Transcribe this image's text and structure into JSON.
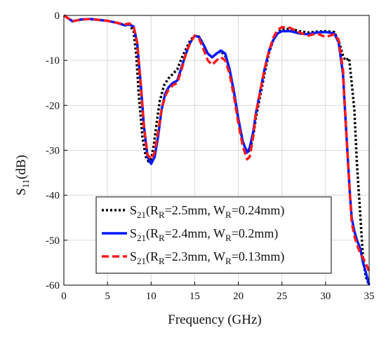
{
  "chart_data": {
    "type": "line",
    "xlabel": "Frequency (GHz)",
    "ylabel": {
      "main": "S",
      "sub": "11",
      "unit": "(dB)"
    },
    "xlim": [
      0,
      35
    ],
    "ylim": [
      -60,
      0
    ],
    "xticks": [
      0,
      5,
      10,
      15,
      20,
      25,
      30,
      35
    ],
    "yticks": [
      0,
      -10,
      -20,
      -30,
      -40,
      -50,
      -60
    ],
    "grid": true,
    "legend_position": "bottom-right",
    "series": [
      {
        "legend": {
          "main": "S",
          "sub": "21",
          "open": "(R",
          "rsub": "R",
          "mid": "=2.5mm, W",
          "wsub": "R",
          "end": "=0.24mm)"
        },
        "color": "#000000",
        "dash": "3 3",
        "x": [
          0,
          1,
          2,
          3,
          4,
          5,
          6,
          7,
          7.5,
          8,
          8.3,
          8.6,
          9,
          9.4,
          9.7,
          10,
          10.3,
          10.7,
          11,
          11.5,
          12,
          12.5,
          13,
          13.5,
          14,
          14.5,
          15,
          15.5,
          16,
          16.5,
          17,
          17.5,
          18,
          18.5,
          19,
          19.5,
          20,
          20.5,
          21,
          21.3,
          21.7,
          22,
          22.5,
          23,
          23.5,
          24,
          24.5,
          25,
          26,
          27,
          28,
          29,
          30,
          31,
          31.5,
          32,
          32.3,
          32.7,
          33,
          33.3,
          33.6,
          34,
          34.3,
          34.6,
          35
        ],
        "y": [
          0,
          -1.3,
          -0.9,
          -0.8,
          -1.0,
          -1.2,
          -1.6,
          -2.2,
          -2.0,
          -3.5,
          -9,
          -18,
          -27,
          -31.5,
          -32.5,
          -32,
          -29,
          -23,
          -19,
          -15.5,
          -14,
          -13,
          -12,
          -9.5,
          -7.5,
          -5.5,
          -4.5,
          -4.7,
          -6.5,
          -8.5,
          -9.3,
          -8.5,
          -8.0,
          -9.0,
          -12,
          -17,
          -23,
          -28,
          -30.5,
          -30,
          -27,
          -23,
          -18,
          -13,
          -8.5,
          -5.5,
          -3.7,
          -3.0,
          -3.0,
          -3.5,
          -3.8,
          -3.6,
          -3.5,
          -3.7,
          -5.5,
          -9,
          -10,
          -9.5,
          -15,
          -21,
          -33,
          -45,
          -54,
          -58,
          -60
        ]
      },
      {
        "legend": {
          "main": "S",
          "sub": "21",
          "open": "(R",
          "rsub": "R",
          "mid": "=2.4mm, W",
          "wsub": "R",
          "end": "=0.2mm)"
        },
        "color": "#0019ff",
        "dash": "",
        "x": [
          0,
          1,
          2,
          3,
          4,
          5,
          6,
          7,
          7.5,
          8,
          8.4,
          8.8,
          9.2,
          9.6,
          10,
          10.4,
          10.8,
          11.2,
          11.6,
          12,
          12.5,
          13,
          13.5,
          14,
          14.5,
          15,
          15.5,
          16,
          16.5,
          17,
          17.5,
          18,
          18.5,
          19,
          19.5,
          20,
          20.5,
          21,
          21.3,
          21.7,
          22,
          22.5,
          23,
          23.5,
          24,
          24.5,
          25,
          26,
          27,
          28,
          29,
          30,
          31,
          31.5,
          32,
          32.2,
          32.5,
          32.8,
          33,
          33.3,
          33.6,
          34,
          34.3,
          34.6,
          35
        ],
        "y": [
          0,
          -1.3,
          -0.9,
          -0.8,
          -1.0,
          -1.2,
          -1.6,
          -2.2,
          -2.0,
          -2.5,
          -6,
          -15,
          -25,
          -31.5,
          -33,
          -31.5,
          -27,
          -21,
          -17.5,
          -16,
          -15,
          -14.5,
          -11.5,
          -8.5,
          -6,
          -4.5,
          -4.8,
          -6.5,
          -8.5,
          -9.3,
          -8.5,
          -7.8,
          -8.5,
          -12,
          -17,
          -23,
          -28,
          -30.5,
          -29.5,
          -26,
          -22,
          -17,
          -12,
          -8,
          -5.5,
          -4,
          -3.5,
          -3.5,
          -4.0,
          -4.2,
          -3.8,
          -3.7,
          -4.0,
          -6,
          -13,
          -20,
          -30,
          -40,
          -45,
          -48,
          -50,
          -52,
          -55,
          -57,
          -60
        ]
      },
      {
        "legend": {
          "main": "S",
          "sub": "21",
          "open": "(R",
          "rsub": "R",
          "mid": "=2.3mm, W",
          "wsub": "R",
          "end": "=0.13mm)"
        },
        "color": "#ff1a1a",
        "dash": "10 5",
        "x": [
          0,
          1,
          2,
          3,
          4,
          5,
          6,
          7,
          7.5,
          8,
          8.4,
          8.8,
          9.2,
          9.6,
          10,
          10.4,
          10.8,
          11.2,
          11.6,
          12,
          12.5,
          13,
          13.5,
          14,
          14.5,
          15,
          15.5,
          16,
          16.5,
          17,
          17.5,
          18,
          18.5,
          19,
          19.5,
          20,
          20.5,
          21,
          21.3,
          21.7,
          22,
          22.5,
          23,
          23.5,
          24,
          24.5,
          25,
          26,
          27,
          28,
          29,
          30,
          31,
          31.5,
          32,
          32.2,
          32.5,
          32.8,
          33,
          33.3,
          33.6,
          34,
          34.3,
          34.6,
          35
        ],
        "y": [
          0,
          -1.3,
          -0.9,
          -0.8,
          -1.0,
          -1.2,
          -1.6,
          -2.0,
          -1.8,
          -2.5,
          -6,
          -15,
          -25,
          -31,
          -32,
          -30.5,
          -26,
          -21,
          -18,
          -16.5,
          -15.5,
          -15,
          -12,
          -8.5,
          -6,
          -4.5,
          -5.2,
          -7.5,
          -10,
          -11,
          -10,
          -9.3,
          -10,
          -13,
          -18,
          -24,
          -29,
          -32,
          -31.5,
          -27,
          -22,
          -17,
          -12,
          -8,
          -5,
          -3.2,
          -2.6,
          -2.8,
          -3.8,
          -4.5,
          -4.0,
          -4.8,
          -4.2,
          -5.5,
          -12,
          -20,
          -30,
          -40,
          -46,
          -49,
          -51,
          -53,
          -54,
          -55,
          -57
        ]
      }
    ]
  }
}
